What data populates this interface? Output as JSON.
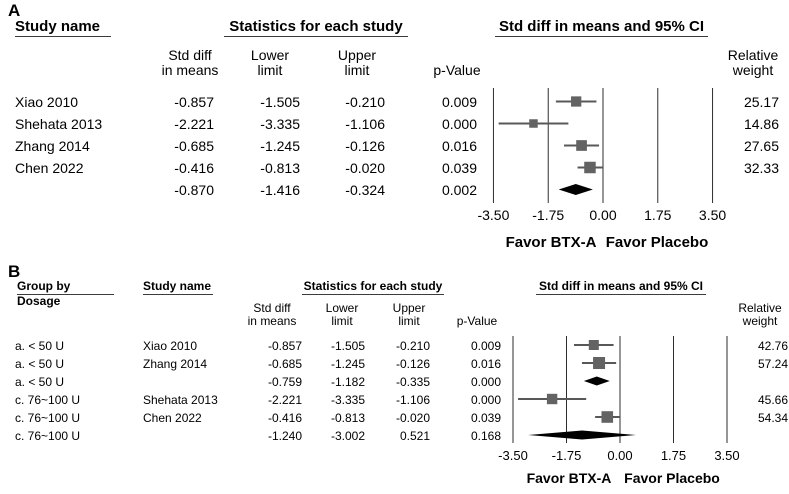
{
  "figure": {
    "background": "#ffffff"
  },
  "colors": {
    "marker": "#636363",
    "ci_line": "#585858",
    "diamond": "#000000",
    "grid_line": "#2e2e2e",
    "text": "#000000"
  },
  "chart_data": [
    {
      "type": "forest",
      "panel_label": "A",
      "headers": {
        "study": "Study name",
        "stats": "Statistics for each study",
        "plot": "Std diff in means and 95% CI"
      },
      "subheaders": {
        "std_diff": [
          "Std diff",
          "in means"
        ],
        "lower": [
          "Lower",
          "limit"
        ],
        "upper": [
          "Upper",
          "limit"
        ],
        "p": "p-Value",
        "weight": [
          "Relative",
          "weight"
        ]
      },
      "axis": {
        "tick_labels": [
          "-3.50",
          "-1.75",
          "0.00",
          "1.75",
          "3.50"
        ],
        "tick_values": [
          -3.5,
          -1.75,
          0,
          1.75,
          3.5
        ],
        "xlim": [
          -4.6,
          4.6
        ]
      },
      "footer": {
        "left": "Favor BTX-A",
        "right": "Favor Placebo"
      },
      "rows": [
        {
          "study": "Xiao 2010",
          "std_diff": "-0.857",
          "lower": "-1.505",
          "upper": "-0.210",
          "p": "0.009",
          "weight": "25.17",
          "marker": "square"
        },
        {
          "study": "Shehata 2013",
          "std_diff": "-2.221",
          "lower": "-3.335",
          "upper": "-1.106",
          "p": "0.000",
          "weight": "14.86",
          "marker": "square"
        },
        {
          "study": "Zhang 2014",
          "std_diff": "-0.685",
          "lower": "-1.245",
          "upper": "-0.126",
          "p": "0.016",
          "weight": "27.65",
          "marker": "square"
        },
        {
          "study": "Chen 2022",
          "std_diff": "-0.416",
          "lower": "-0.813",
          "upper": "-0.020",
          "p": "0.039",
          "weight": "32.33",
          "marker": "square"
        },
        {
          "study": "",
          "std_diff": "-0.870",
          "lower": "-1.416",
          "upper": "-0.324",
          "p": "0.002",
          "weight": "",
          "marker": "diamond"
        }
      ]
    },
    {
      "type": "forest",
      "panel_label": "B",
      "headers": {
        "group": [
          "Group by",
          "Dosage"
        ],
        "study": "Study name",
        "stats": "Statistics for each study",
        "plot": "Std diff in means and 95% CI"
      },
      "subheaders": {
        "std_diff": [
          "Std diff",
          "in means"
        ],
        "lower": [
          "Lower",
          "limit"
        ],
        "upper": [
          "Upper",
          "limit"
        ],
        "p": "p-Value",
        "weight": [
          "Relative",
          "weight"
        ]
      },
      "axis": {
        "tick_labels": [
          "-3.50",
          "-1.75",
          "0.00",
          "1.75",
          "3.50"
        ],
        "tick_values": [
          -3.5,
          -1.75,
          0,
          1.75,
          3.5
        ],
        "xlim": [
          -4.6,
          4.6
        ]
      },
      "footer": {
        "left": "Favor BTX-A",
        "right": "Favor Placebo"
      },
      "rows": [
        {
          "group": "a. < 50 U",
          "study": "Xiao 2010",
          "std_diff": "-0.857",
          "lower": "-1.505",
          "upper": "-0.210",
          "p": "0.009",
          "weight": "42.76",
          "marker": "square"
        },
        {
          "group": "a. < 50 U",
          "study": "Zhang 2014",
          "std_diff": "-0.685",
          "lower": "-1.245",
          "upper": "-0.126",
          "p": "0.016",
          "weight": "57.24",
          "marker": "square"
        },
        {
          "group": "a. < 50 U",
          "study": "",
          "std_diff": "-0.759",
          "lower": "-1.182",
          "upper": "-0.335",
          "p": "0.000",
          "weight": "",
          "marker": "diamond"
        },
        {
          "group": "c. 76~100 U",
          "study": "Shehata 2013",
          "std_diff": "-2.221",
          "lower": "-3.335",
          "upper": "-1.106",
          "p": "0.000",
          "weight": "45.66",
          "marker": "square"
        },
        {
          "group": "c. 76~100 U",
          "study": "Chen 2022",
          "std_diff": "-0.416",
          "lower": "-0.813",
          "upper": "-0.020",
          "p": "0.039",
          "weight": "54.34",
          "marker": "square"
        },
        {
          "group": "c. 76~100 U",
          "study": "",
          "std_diff": "-1.240",
          "lower": "-3.002",
          "upper": "0.521",
          "p": "0.168",
          "weight": "",
          "marker": "diamond"
        }
      ]
    }
  ]
}
